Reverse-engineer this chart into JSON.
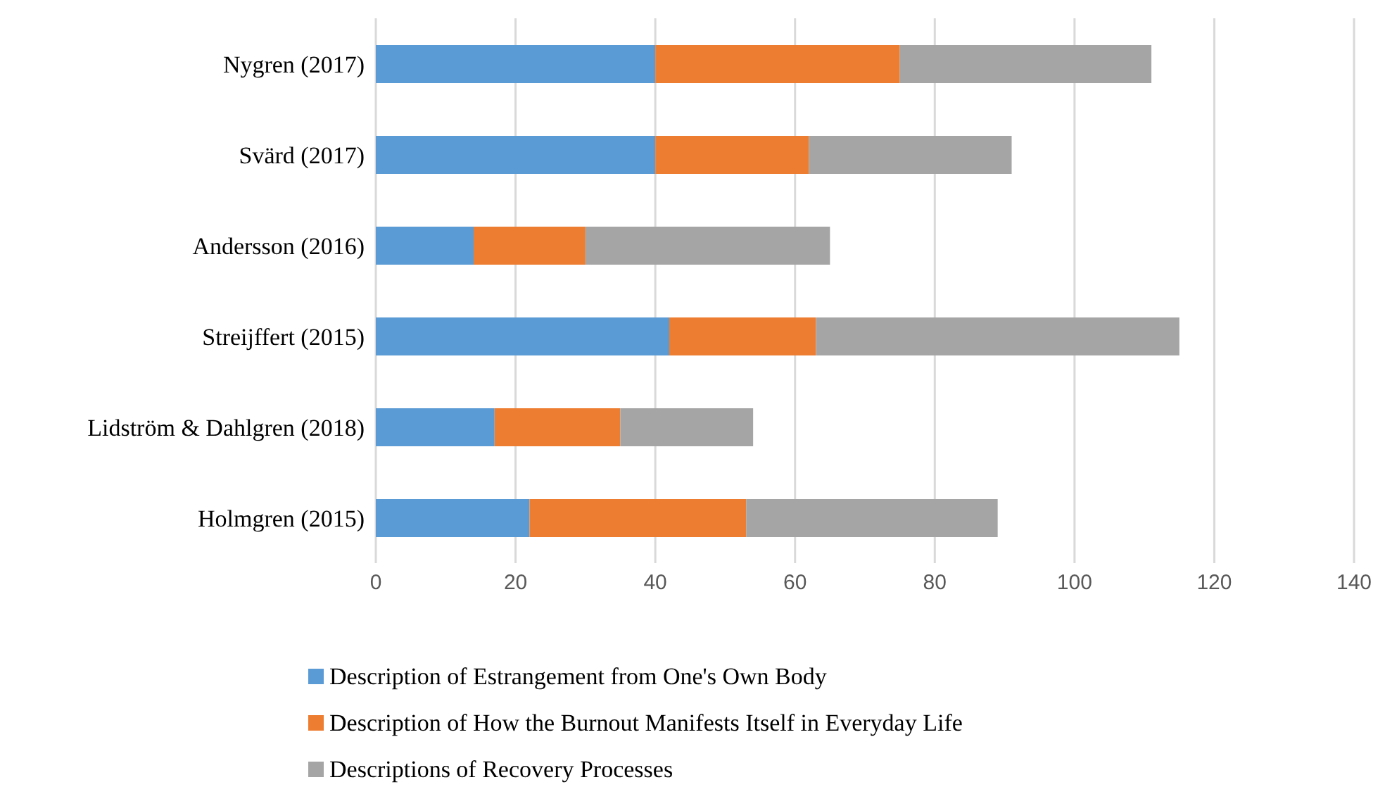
{
  "chart_data": {
    "type": "bar",
    "orientation": "horizontal",
    "stacked": true,
    "categories": [
      "Nygren (2017)",
      "Svärd (2017)",
      "Andersson (2016)",
      "Streijffert (2015)",
      "Lidström & Dahlgren (2018)",
      "Holmgren (2015)"
    ],
    "series": [
      {
        "name": "Description of Estrangement from One's Own Body",
        "color": "#5b9bd5",
        "values": [
          40,
          40,
          14,
          42,
          17,
          22
        ]
      },
      {
        "name": "Description of How the Burnout Manifests Itself in Everyday Life",
        "color": "#ed7d31",
        "values": [
          35,
          22,
          16,
          21,
          18,
          31
        ]
      },
      {
        "name": "Descriptions of Recovery Processes",
        "color": "#a5a5a5",
        "values": [
          36,
          29,
          35,
          52,
          19,
          36
        ]
      }
    ],
    "xlim": [
      0,
      140
    ],
    "xticks": [
      0,
      20,
      40,
      60,
      80,
      100,
      120,
      140
    ],
    "grid": "x",
    "legend": "bottom"
  }
}
